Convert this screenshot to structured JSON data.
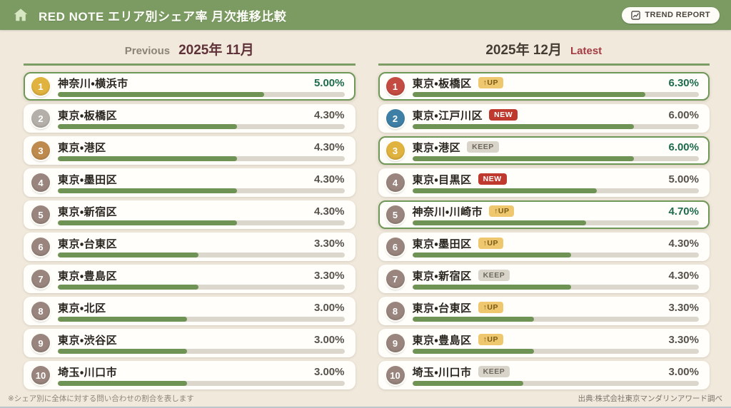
{
  "header": {
    "title": "RED NOTE エリア別シェア率 月次推移比較",
    "trend_report_label": "TREND REPORT"
  },
  "panels": {
    "previous": {
      "eyebrow": "Previous",
      "month": "2025年 11月",
      "items": [
        {
          "rank": 1,
          "area": "神奈川・横浜市",
          "share": "5.00%",
          "value": 5.0,
          "tier": "gold",
          "highlight": true,
          "change": null
        },
        {
          "rank": 2,
          "area": "東京・板橋区",
          "share": "4.30%",
          "value": 4.3,
          "tier": "silver",
          "highlight": false,
          "change": null
        },
        {
          "rank": 3,
          "area": "東京・港区",
          "share": "4.30%",
          "value": 4.3,
          "tier": "bronze",
          "highlight": false,
          "change": null
        },
        {
          "rank": 4,
          "area": "東京・墨田区",
          "share": "4.30%",
          "value": 4.3,
          "tier": "default",
          "highlight": false,
          "change": null
        },
        {
          "rank": 5,
          "area": "東京・新宿区",
          "share": "4.30%",
          "value": 4.3,
          "tier": "default",
          "highlight": false,
          "change": null
        },
        {
          "rank": 6,
          "area": "東京・台東区",
          "share": "3.30%",
          "value": 3.3,
          "tier": "default",
          "highlight": false,
          "change": null
        },
        {
          "rank": 7,
          "area": "東京・豊島区",
          "share": "3.30%",
          "value": 3.3,
          "tier": "default",
          "highlight": false,
          "change": null
        },
        {
          "rank": 8,
          "area": "東京・北区",
          "share": "3.00%",
          "value": 3.0,
          "tier": "default",
          "highlight": false,
          "change": null
        },
        {
          "rank": 9,
          "area": "東京・渋谷区",
          "share": "3.00%",
          "value": 3.0,
          "tier": "default",
          "highlight": false,
          "change": null
        },
        {
          "rank": 10,
          "area": "埼玉・川口市",
          "share": "3.00%",
          "value": 3.0,
          "tier": "default",
          "highlight": false,
          "change": null
        }
      ]
    },
    "latest": {
      "eyebrow": "Latest",
      "month": "2025年 12月",
      "items": [
        {
          "rank": 1,
          "area": "東京・板橋区",
          "share": "6.30%",
          "value": 6.3,
          "tier": "red",
          "highlight": true,
          "change": {
            "type": "up",
            "label": "↑UP"
          }
        },
        {
          "rank": 2,
          "area": "東京・江戸川区",
          "share": "6.00%",
          "value": 6.0,
          "tier": "blue",
          "highlight": false,
          "change": {
            "type": "new",
            "label": "NEW"
          }
        },
        {
          "rank": 3,
          "area": "東京・港区",
          "share": "6.00%",
          "value": 6.0,
          "tier": "gold",
          "highlight": true,
          "change": {
            "type": "keep",
            "label": "KEEP"
          }
        },
        {
          "rank": 4,
          "area": "東京・目黒区",
          "share": "5.00%",
          "value": 5.0,
          "tier": "default",
          "highlight": false,
          "change": {
            "type": "new",
            "label": "NEW"
          }
        },
        {
          "rank": 5,
          "area": "神奈川・川崎市",
          "share": "4.70%",
          "value": 4.7,
          "tier": "default",
          "highlight": true,
          "change": {
            "type": "up",
            "label": "↑UP"
          }
        },
        {
          "rank": 6,
          "area": "東京・墨田区",
          "share": "4.30%",
          "value": 4.3,
          "tier": "default",
          "highlight": false,
          "change": {
            "type": "up",
            "label": "↑UP"
          }
        },
        {
          "rank": 7,
          "area": "東京・新宿区",
          "share": "4.30%",
          "value": 4.3,
          "tier": "default",
          "highlight": false,
          "change": {
            "type": "keep",
            "label": "KEEP"
          }
        },
        {
          "rank": 8,
          "area": "東京・台東区",
          "share": "3.30%",
          "value": 3.3,
          "tier": "default",
          "highlight": false,
          "change": {
            "type": "up",
            "label": "↑UP"
          }
        },
        {
          "rank": 9,
          "area": "東京・豊島区",
          "share": "3.30%",
          "value": 3.3,
          "tier": "default",
          "highlight": false,
          "change": {
            "type": "up",
            "label": "↑UP"
          }
        },
        {
          "rank": 10,
          "area": "埼玉・川口市",
          "share": "3.00%",
          "value": 3.0,
          "tier": "default",
          "highlight": false,
          "change": {
            "type": "keep",
            "label": "KEEP"
          }
        }
      ]
    }
  },
  "footer": {
    "note": "※シェア別に全体に対する問い合わせの割合を表します",
    "source": "出典:株式会社東京マンダリンアワード調べ"
  },
  "colors": {
    "appbar_green": "#7b9b63",
    "bar_fill": "#6e9355",
    "bar_track": "#dcd7cc",
    "highlight_border": "#6f9757",
    "highlight_value": "#1d6b4d",
    "tier_gold": "#e0b23e",
    "tier_silver": "#b4afa9",
    "tier_bronze": "#bf8a4d",
    "tier_red": "#c44b42",
    "tier_blue": "#3e7fa6",
    "tier_default": "#99857e",
    "badge_up_bg": "#eec76e",
    "badge_up_text": "#7a5a16",
    "badge_new_bg": "#bf392f",
    "badge_new_text": "#ffffff",
    "badge_keep_bg": "#d9d4ca",
    "badge_keep_text": "#6f695f"
  }
}
